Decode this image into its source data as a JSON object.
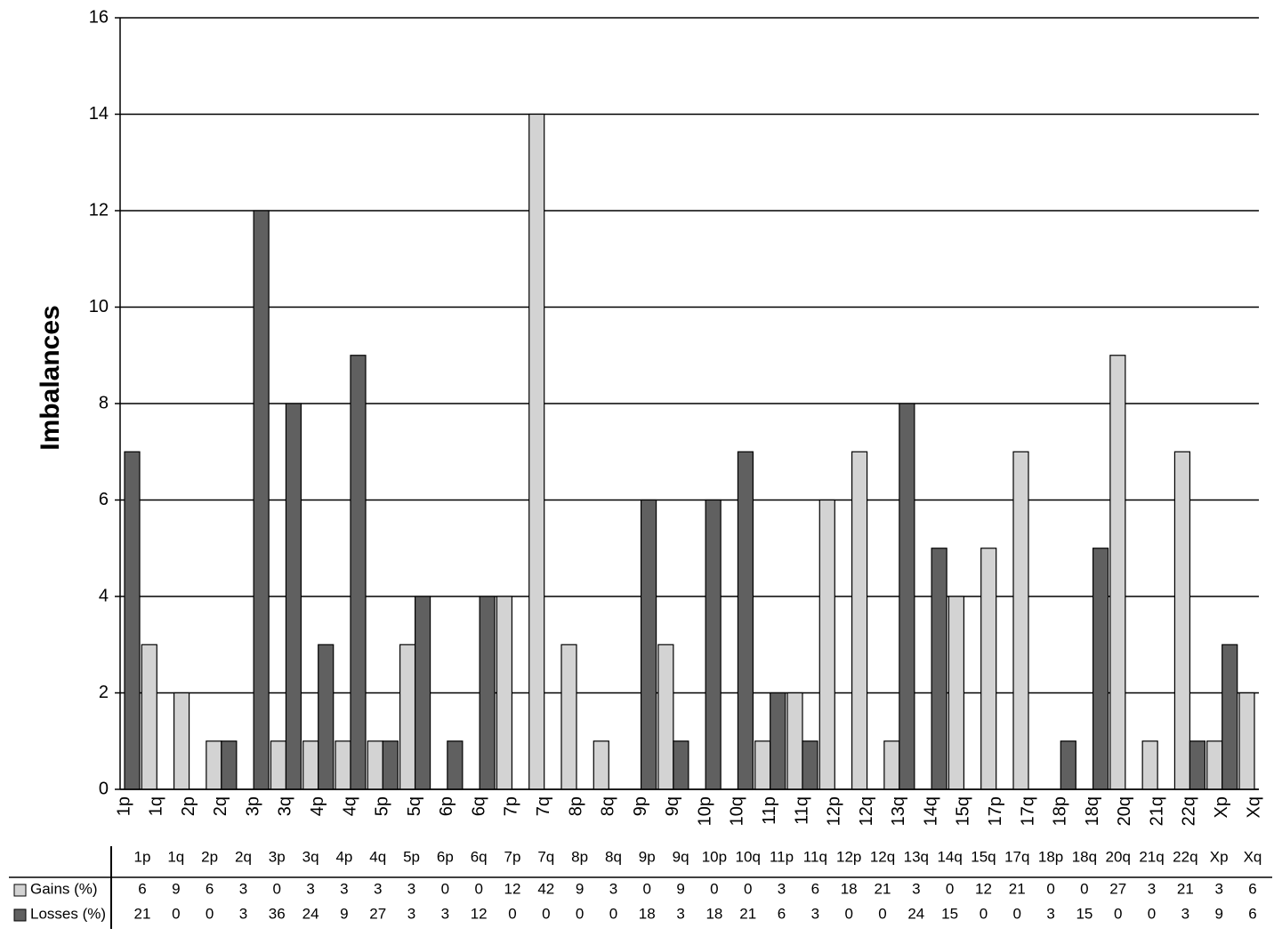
{
  "chart_data": {
    "type": "bar",
    "y_label": "Imbalances",
    "categories": [
      "1p",
      "1q",
      "2p",
      "2q",
      "3p",
      "3q",
      "4p",
      "4q",
      "5p",
      "5q",
      "6p",
      "6q",
      "7p",
      "7q",
      "8p",
      "8q",
      "9p",
      "9q",
      "10p",
      "10q",
      "11p",
      "11q",
      "12p",
      "12q",
      "13q",
      "14q",
      "15q",
      "17p",
      "17q",
      "18p",
      "18q",
      "20q",
      "21q",
      "22q",
      "Xp",
      "Xq"
    ],
    "series": [
      {
        "name": "Gains (%)",
        "color": "#d3d3d3",
        "values": [
          0,
          3,
          2,
          1,
          0,
          1,
          1,
          1,
          1,
          3,
          0,
          0,
          4,
          14,
          3,
          1,
          0,
          3,
          0,
          0,
          1,
          2,
          6,
          7,
          1,
          0,
          4,
          5,
          7,
          0,
          0,
          9,
          1,
          7,
          1,
          2
        ]
      },
      {
        "name": "Losses (%)",
        "color": "#606060",
        "values": [
          7,
          0,
          0,
          1,
          12,
          8,
          3,
          9,
          1,
          4,
          1,
          4,
          0,
          0,
          0,
          0,
          6,
          1,
          6,
          7,
          2,
          1,
          0,
          0,
          8,
          5,
          0,
          0,
          0,
          1,
          5,
          0,
          0,
          1,
          3,
          0
        ]
      }
    ],
    "ylim": [
      0,
      16
    ],
    "yticks": [
      0,
      2,
      4,
      6,
      8,
      10,
      12,
      14,
      16
    ],
    "grid": true
  },
  "table": {
    "columns": [
      "1p",
      "1q",
      "2p",
      "2q",
      "3p",
      "3q",
      "4p",
      "4q",
      "5p",
      "6p",
      "6q",
      "7p",
      "7q",
      "8p",
      "8q",
      "9p",
      "9q",
      "10p",
      "10q",
      "11p",
      "11q",
      "12p",
      "12q",
      "13q",
      "14q",
      "15q",
      "17q",
      "18p",
      "18q",
      "20q",
      "21q",
      "22q",
      "Xp",
      "Xq"
    ],
    "rows": [
      [
        6,
        9,
        6,
        3,
        0,
        3,
        3,
        3,
        3,
        0,
        0,
        12,
        42,
        9,
        3,
        0,
        9,
        0,
        0,
        3,
        6,
        18,
        21,
        3,
        0,
        12,
        21,
        0,
        0,
        27,
        3,
        21,
        3,
        6
      ],
      [
        21,
        0,
        0,
        3,
        36,
        24,
        9,
        27,
        3,
        3,
        12,
        0,
        0,
        0,
        0,
        18,
        3,
        18,
        21,
        6,
        3,
        0,
        0,
        24,
        15,
        0,
        0,
        3,
        15,
        0,
        0,
        3,
        9,
        6
      ]
    ]
  }
}
